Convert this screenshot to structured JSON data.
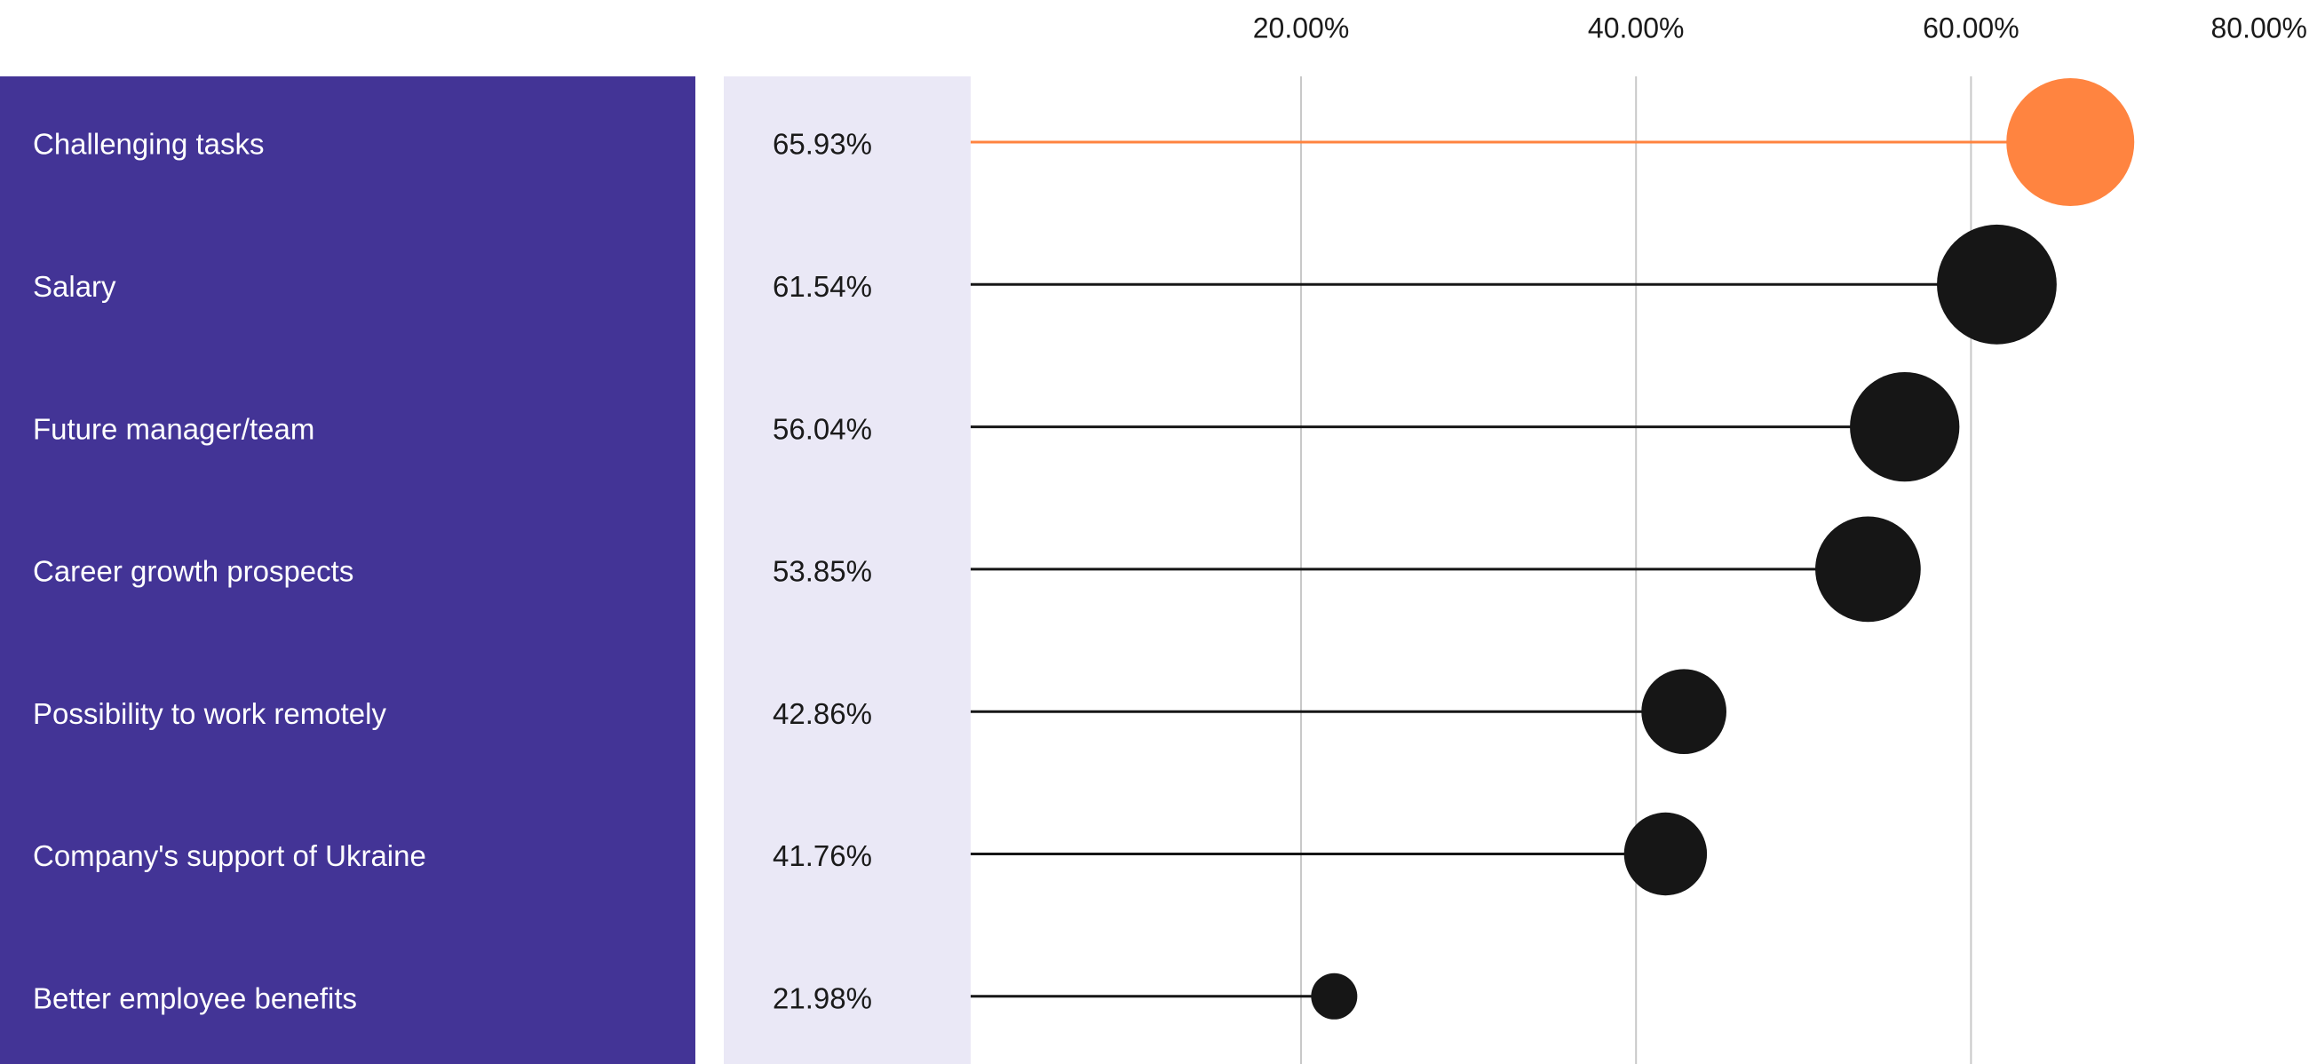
{
  "chart_data": {
    "type": "lollipop",
    "categories": [
      "Challenging tasks",
      "Salary",
      "Future manager/team",
      "Career growth prospects",
      "Possibility to work remotely",
      "Company's support of Ukraine",
      "Better employee benefits"
    ],
    "values": [
      65.93,
      61.54,
      56.04,
      53.85,
      42.86,
      41.76,
      21.98
    ],
    "value_labels": [
      "65.93%",
      "61.54%",
      "56.04%",
      "53.85%",
      "42.86%",
      "41.76%",
      "21.98%"
    ],
    "highlight_index": 0,
    "x_ticks": [
      20,
      40,
      60,
      80
    ],
    "x_tick_labels": [
      "20.00%",
      "40.00%",
      "60.00%",
      "80.00%"
    ],
    "xlim": [
      0,
      80
    ],
    "grid": true,
    "title": "",
    "xlabel": "",
    "ylabel": ""
  },
  "colors": {
    "label_panel": "#433496",
    "value_panel": "#eae8f6",
    "highlight": "#ff8440",
    "default_marker": "#161616",
    "gridline": "#c8c8c8"
  }
}
